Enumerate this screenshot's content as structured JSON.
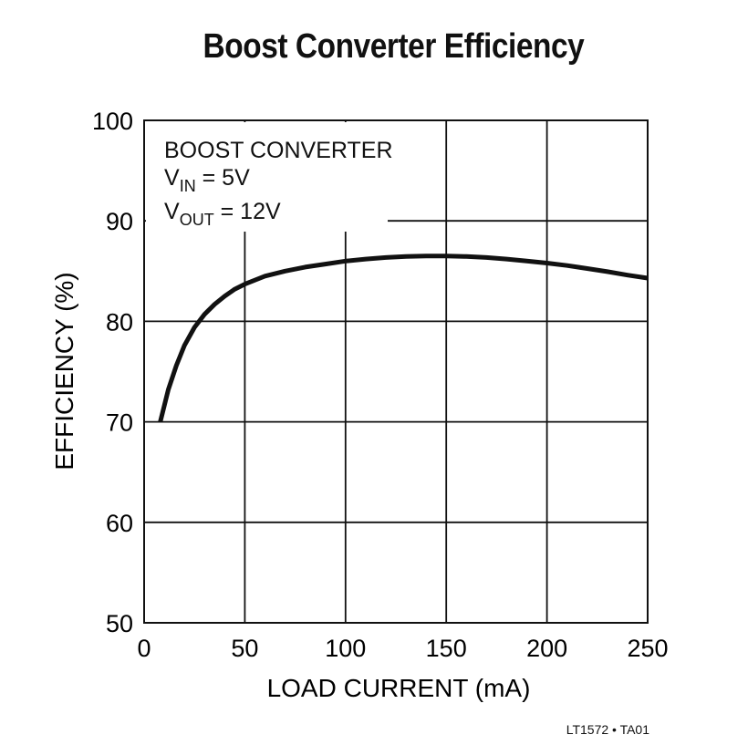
{
  "chart_data": {
    "type": "line",
    "title": "Boost Converter Efficiency",
    "xlabel": "LOAD CURRENT (mA)",
    "ylabel": "EFFICIENCY (%)",
    "xlim": [
      0,
      250
    ],
    "ylim": [
      50,
      100
    ],
    "xticks": [
      "0",
      "50",
      "100",
      "150",
      "200",
      "250"
    ],
    "yticks": [
      "50",
      "60",
      "70",
      "80",
      "90",
      "100"
    ],
    "grid": true,
    "annotation": {
      "line1": "BOOST CONVERTER",
      "line2_main": "V",
      "line2_sub": "IN",
      "line2_rest": " = 5V",
      "line3_main": "V",
      "line3_sub": "OUT",
      "line3_rest": " = 12V"
    },
    "series": [
      {
        "x": [
          8,
          12,
          16,
          20,
          25,
          30,
          35,
          40,
          45,
          50,
          60,
          70,
          80,
          90,
          100,
          110,
          120,
          130,
          140,
          150,
          160,
          170,
          180,
          190,
          200,
          210,
          220,
          230,
          240,
          250
        ],
        "y": [
          70,
          73.2,
          75.6,
          77.6,
          79.4,
          80.7,
          81.7,
          82.5,
          83.2,
          83.7,
          84.5,
          85.0,
          85.4,
          85.7,
          86.0,
          86.2,
          86.35,
          86.45,
          86.5,
          86.5,
          86.45,
          86.35,
          86.2,
          86.0,
          85.8,
          85.55,
          85.25,
          84.95,
          84.6,
          84.3
        ]
      }
    ],
    "footer": "LT1572 • TA01"
  }
}
